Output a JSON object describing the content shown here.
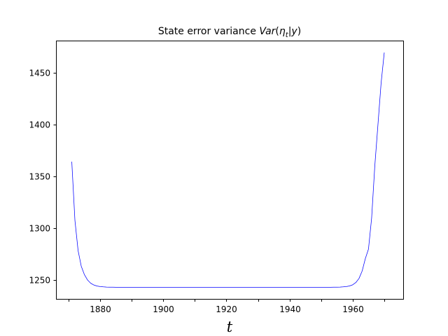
{
  "chart_data": {
    "type": "line",
    "title": "State error variance Var(ηt|y)",
    "title_parts": {
      "prefix": "State error variance ",
      "func": "Var",
      "open": "(",
      "eta": "η",
      "sub": "t",
      "bar": "|",
      "cond": "y",
      "close": ")"
    },
    "xlabel": "t",
    "ylabel": "",
    "xlim": [
      1866,
      1976
    ],
    "ylim": [
      1232,
      1481
    ],
    "x_ticks": [
      1870,
      1880,
      1890,
      1900,
      1910,
      1920,
      1930,
      1940,
      1950,
      1960,
      1970
    ],
    "x_tick_labels": [
      "",
      "1880",
      "",
      "1900",
      "",
      "1920",
      "",
      "1940",
      "",
      "1960",
      ""
    ],
    "y_ticks": [
      1250,
      1300,
      1350,
      1400,
      1450
    ],
    "y_tick_labels": [
      "1250",
      "1300",
      "1350",
      "1400",
      "1450"
    ],
    "grid": false,
    "series": [
      {
        "color": "#0000ff",
        "x": [
          1871,
          1872,
          1873,
          1874,
          1875,
          1876,
          1877,
          1878,
          1879,
          1880,
          1881,
          1882,
          1883,
          1884,
          1885,
          1886,
          1887,
          1888,
          1889,
          1890,
          1891,
          1892,
          1893,
          1894,
          1895,
          1896,
          1897,
          1898,
          1899,
          1900,
          1901,
          1902,
          1903,
          1904,
          1905,
          1906,
          1907,
          1908,
          1909,
          1910,
          1911,
          1912,
          1913,
          1914,
          1915,
          1916,
          1917,
          1918,
          1919,
          1920,
          1921,
          1922,
          1923,
          1924,
          1925,
          1926,
          1927,
          1928,
          1929,
          1930,
          1931,
          1932,
          1933,
          1934,
          1935,
          1936,
          1937,
          1938,
          1939,
          1940,
          1941,
          1942,
          1943,
          1944,
          1945,
          1946,
          1947,
          1948,
          1949,
          1950,
          1951,
          1952,
          1953,
          1954,
          1955,
          1956,
          1957,
          1958,
          1959,
          1960,
          1961,
          1962,
          1963,
          1964,
          1965,
          1966,
          1967,
          1968,
          1969,
          1970
        ],
        "y": [
          1364.3,
          1307.6,
          1278.6,
          1263.5,
          1255.4,
          1250.2,
          1247.1,
          1245.4,
          1244.4,
          1243.9,
          1243.6,
          1243.4,
          1243.3,
          1243.3,
          1243.2,
          1243.2,
          1243.2,
          1243.2,
          1243.2,
          1243.2,
          1243.2,
          1243.2,
          1243.2,
          1243.2,
          1243.2,
          1243.2,
          1243.2,
          1243.2,
          1243.2,
          1243.2,
          1243.2,
          1243.2,
          1243.2,
          1243.2,
          1243.2,
          1243.2,
          1243.2,
          1243.2,
          1243.2,
          1243.2,
          1243.2,
          1243.2,
          1243.2,
          1243.2,
          1243.2,
          1243.2,
          1243.2,
          1243.2,
          1243.2,
          1243.2,
          1243.2,
          1243.2,
          1243.2,
          1243.2,
          1243.2,
          1243.2,
          1243.2,
          1243.2,
          1243.2,
          1243.2,
          1243.2,
          1243.2,
          1243.2,
          1243.2,
          1243.2,
          1243.2,
          1243.2,
          1243.2,
          1243.2,
          1243.2,
          1243.2,
          1243.2,
          1243.2,
          1243.2,
          1243.2,
          1243.2,
          1243.2,
          1243.2,
          1243.2,
          1243.2,
          1243.2,
          1243.2,
          1243.2,
          1243.3,
          1243.3,
          1243.4,
          1243.6,
          1243.9,
          1244.5,
          1245.6,
          1247.8,
          1251.7,
          1258.9,
          1270.8,
          1280.0,
          1310.0,
          1360.0,
          1400.0,
          1440.0,
          1469.5
        ]
      }
    ]
  }
}
